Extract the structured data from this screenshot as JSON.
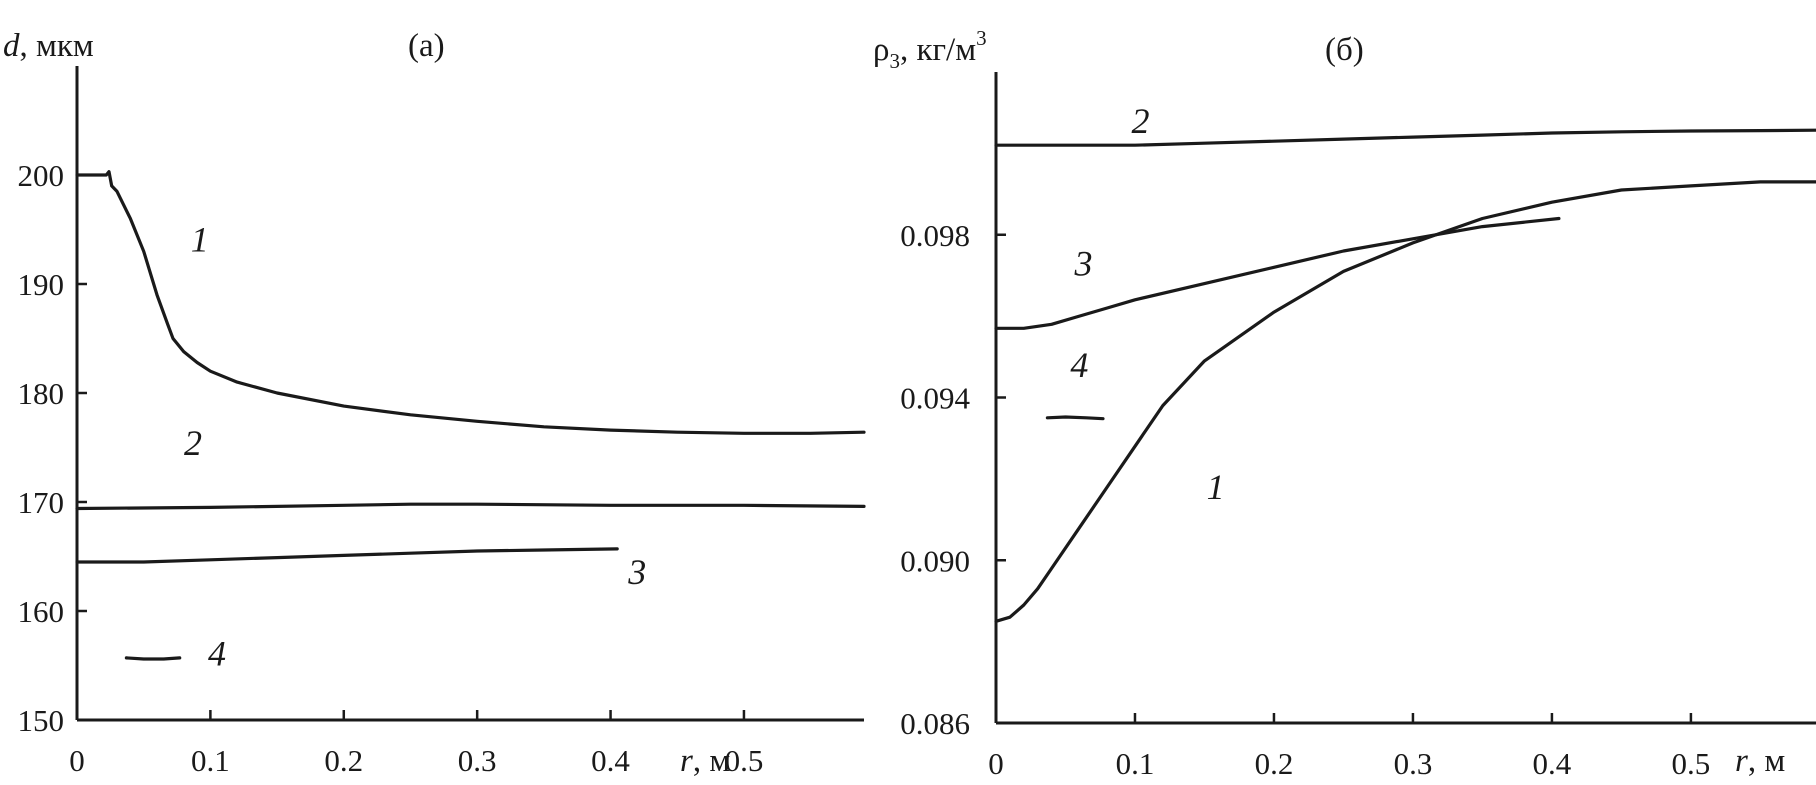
{
  "chart_data": [
    {
      "type": "line",
      "panel_label": "(а)",
      "ylabel_var": "d",
      "ylabel_unit": ", мкм",
      "xlabel_var": "r",
      "xlabel_unit": ", м",
      "xlim": [
        0,
        0.59
      ],
      "ylim": [
        150,
        210
      ],
      "xticks": [
        "0",
        "0.1",
        "0.2",
        "0.3",
        "0.4",
        "0.5"
      ],
      "xtick_values": [
        0,
        0.1,
        0.2,
        0.3,
        0.4,
        0.5
      ],
      "yticks": [
        "150",
        "160",
        "170",
        "180",
        "190",
        "200"
      ],
      "ytick_values": [
        150,
        160,
        170,
        180,
        190,
        200
      ],
      "series": [
        {
          "name": "1",
          "label_pos": [
            0.092,
            193
          ],
          "points": [
            [
              0,
              200
            ],
            [
              0.022,
              200
            ],
            [
              0.024,
              200.3
            ],
            [
              0.026,
              199
            ],
            [
              0.03,
              198.5
            ],
            [
              0.04,
              196
            ],
            [
              0.05,
              193
            ],
            [
              0.06,
              189
            ],
            [
              0.068,
              186.3
            ],
            [
              0.072,
              185
            ],
            [
              0.08,
              183.8
            ],
            [
              0.09,
              182.8
            ],
            [
              0.1,
              182
            ],
            [
              0.12,
              181
            ],
            [
              0.15,
              180
            ],
            [
              0.2,
              178.8
            ],
            [
              0.25,
              178
            ],
            [
              0.3,
              177.4
            ],
            [
              0.35,
              176.9
            ],
            [
              0.4,
              176.6
            ],
            [
              0.45,
              176.4
            ],
            [
              0.5,
              176.3
            ],
            [
              0.55,
              176.3
            ],
            [
              0.59,
              176.4
            ]
          ]
        },
        {
          "name": "2",
          "label_pos": [
            0.087,
            174.3
          ],
          "points": [
            [
              0,
              169.4
            ],
            [
              0.1,
              169.5
            ],
            [
              0.2,
              169.7
            ],
            [
              0.25,
              169.8
            ],
            [
              0.3,
              169.8
            ],
            [
              0.4,
              169.7
            ],
            [
              0.5,
              169.7
            ],
            [
              0.59,
              169.6
            ]
          ]
        },
        {
          "name": "3",
          "label_pos": [
            0.42,
            162.5
          ],
          "points": [
            [
              0,
              164.5
            ],
            [
              0.05,
              164.5
            ],
            [
              0.1,
              164.7
            ],
            [
              0.15,
              164.9
            ],
            [
              0.2,
              165.1
            ],
            [
              0.25,
              165.3
            ],
            [
              0.3,
              165.5
            ],
            [
              0.35,
              165.6
            ],
            [
              0.405,
              165.7
            ]
          ]
        },
        {
          "name": "4",
          "label_pos": [
            0.105,
            155
          ],
          "points": [
            [
              0.037,
              155.7
            ],
            [
              0.05,
              155.6
            ],
            [
              0.065,
              155.6
            ],
            [
              0.077,
              155.7
            ]
          ]
        }
      ]
    },
    {
      "type": "line",
      "panel_label": "(б)",
      "ylabel_var": "ρ",
      "ylabel_sub": "3",
      "ylabel_unit": ", кг/м",
      "ylabel_sup": "3",
      "xlabel_var": "r",
      "xlabel_unit": ", м",
      "xlim": [
        0,
        0.59
      ],
      "ylim": [
        0.086,
        0.102
      ],
      "xticks": [
        "0",
        "0.1",
        "0.2",
        "0.3",
        "0.4",
        "0.5"
      ],
      "xtick_values": [
        0,
        0.1,
        0.2,
        0.3,
        0.4,
        0.5
      ],
      "yticks": [
        "0.086",
        "0.090",
        "0.094",
        "0.098"
      ],
      "ytick_values": [
        0.086,
        0.09,
        0.094,
        0.098
      ],
      "series": [
        {
          "name": "1",
          "label_pos": [
            0.158,
            0.0915
          ],
          "points": [
            [
              0,
              0.0885
            ],
            [
              0.01,
              0.0886
            ],
            [
              0.02,
              0.0889
            ],
            [
              0.03,
              0.0893
            ],
            [
              0.04,
              0.0898
            ],
            [
              0.06,
              0.0908
            ],
            [
              0.08,
              0.0918
            ],
            [
              0.1,
              0.0928
            ],
            [
              0.12,
              0.0938
            ],
            [
              0.15,
              0.0949
            ],
            [
              0.2,
              0.0961
            ],
            [
              0.25,
              0.0971
            ],
            [
              0.3,
              0.0978
            ],
            [
              0.35,
              0.0984
            ],
            [
              0.4,
              0.0988
            ],
            [
              0.45,
              0.0991
            ],
            [
              0.5,
              0.0992
            ],
            [
              0.55,
              0.0993
            ],
            [
              0.59,
              0.0993
            ]
          ]
        },
        {
          "name": "2",
          "label_pos": [
            0.104,
            0.1005
          ],
          "points": [
            [
              0,
              0.1002
            ],
            [
              0.05,
              0.1002
            ],
            [
              0.1,
              0.1002
            ],
            [
              0.15,
              0.10025
            ],
            [
              0.2,
              0.1003
            ],
            [
              0.25,
              0.10035
            ],
            [
              0.3,
              0.1004
            ],
            [
              0.35,
              0.10045
            ],
            [
              0.4,
              0.1005
            ],
            [
              0.45,
              0.10053
            ],
            [
              0.5,
              0.10055
            ],
            [
              0.55,
              0.10056
            ],
            [
              0.59,
              0.10057
            ]
          ]
        },
        {
          "name": "3",
          "label_pos": [
            0.063,
            0.097
          ],
          "points": [
            [
              0,
              0.0957
            ],
            [
              0.02,
              0.0957
            ],
            [
              0.04,
              0.0958
            ],
            [
              0.06,
              0.096
            ],
            [
              0.08,
              0.0962
            ],
            [
              0.1,
              0.0964
            ],
            [
              0.15,
              0.0968
            ],
            [
              0.2,
              0.0972
            ],
            [
              0.25,
              0.0976
            ],
            [
              0.3,
              0.0979
            ],
            [
              0.35,
              0.0982
            ],
            [
              0.405,
              0.0984
            ]
          ]
        },
        {
          "name": "4",
          "label_pos": [
            0.06,
            0.0945
          ],
          "points": [
            [
              0.037,
              0.0935
            ],
            [
              0.05,
              0.09352
            ],
            [
              0.065,
              0.0935
            ],
            [
              0.077,
              0.09348
            ]
          ]
        }
      ]
    }
  ]
}
